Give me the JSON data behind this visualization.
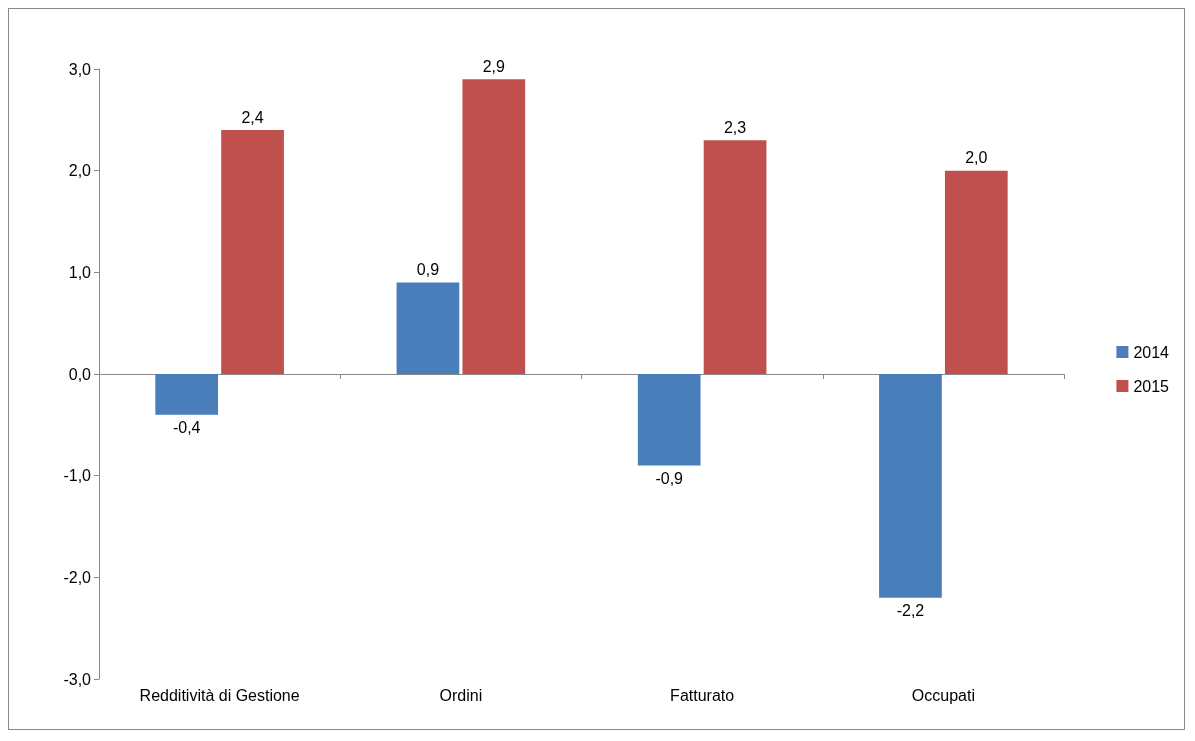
{
  "chart_data": {
    "type": "bar",
    "categories": [
      "Redditività di Gestione",
      "Ordini",
      "Fatturato",
      "Occupati"
    ],
    "series": [
      {
        "name": "2014",
        "color": "#4a7ebb",
        "values": [
          -0.4,
          0.9,
          -0.9,
          -2.2
        ],
        "value_labels": [
          "-0,4",
          "0,9",
          "-0,9",
          "-2,2"
        ]
      },
      {
        "name": "2015",
        "color": "#c0504d",
        "values": [
          2.4,
          2.9,
          2.3,
          2.0
        ],
        "value_labels": [
          "2,4",
          "2,9",
          "2,3",
          "2,0"
        ]
      }
    ],
    "ylim": [
      -3,
      3
    ],
    "yticks": [
      {
        "value": -3,
        "label": "-3,0"
      },
      {
        "value": -2,
        "label": "-2,0"
      },
      {
        "value": -1,
        "label": "-1,0"
      },
      {
        "value": 0,
        "label": "0,0"
      },
      {
        "value": 1,
        "label": "1,0"
      },
      {
        "value": 2,
        "label": "2,0"
      },
      {
        "value": 3,
        "label": "3,0"
      }
    ],
    "legend": "right"
  }
}
